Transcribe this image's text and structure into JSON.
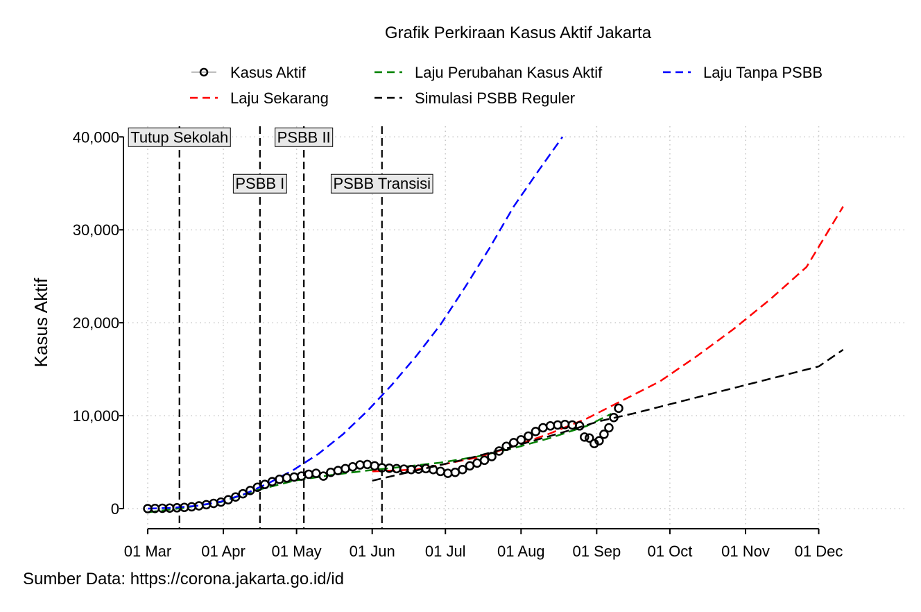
{
  "chart_data": {
    "type": "line",
    "title": "Grafik Perkiraan Kasus Aktif Jakarta",
    "xlabel": "",
    "ylabel": "Kasus Aktif",
    "caption": "Sumber Data: https://corona.jakarta.go.id/id",
    "xlim": [
      0,
      275
    ],
    "ylim": [
      -2000,
      40500
    ],
    "grid": true,
    "legend_position": "top",
    "x_ticks": [
      {
        "label": "01 Mar",
        "day": 0
      },
      {
        "label": "01 Apr",
        "day": 31
      },
      {
        "label": "01 May",
        "day": 61
      },
      {
        "label": "01 Jun",
        "day": 92
      },
      {
        "label": "01 Jul",
        "day": 122
      },
      {
        "label": "01 Aug",
        "day": 153
      },
      {
        "label": "01 Sep",
        "day": 184
      },
      {
        "label": "01 Oct",
        "day": 214
      },
      {
        "label": "01 Nov",
        "day": 245
      },
      {
        "label": "01 Dec",
        "day": 275
      }
    ],
    "y_ticks": [
      {
        "label": "0",
        "value": 0
      },
      {
        "label": "10,000",
        "value": 10000
      },
      {
        "label": "20,000",
        "value": 20000
      },
      {
        "label": "30,000",
        "value": 30000
      },
      {
        "label": "40,000",
        "value": 40000
      }
    ],
    "events": [
      {
        "label": "Tutup Sekolah",
        "day": 13,
        "level": 40000
      },
      {
        "label": "PSBB I",
        "day": 46,
        "level": 35000
      },
      {
        "label": "PSBB II",
        "day": 64,
        "level": 40000
      },
      {
        "label": "PSBB Transisi",
        "day": 96,
        "level": 35000
      }
    ],
    "series": [
      {
        "name": "Kasus Aktif",
        "style": "points",
        "color": "#000000",
        "x": [
          0,
          3,
          6,
          9,
          12,
          15,
          18,
          21,
          24,
          27,
          30,
          33,
          36,
          39,
          42,
          45,
          48,
          51,
          54,
          57,
          60,
          63,
          66,
          69,
          72,
          75,
          78,
          81,
          84,
          87,
          90,
          93,
          96,
          99,
          102,
          105,
          108,
          111,
          114,
          117,
          120,
          123,
          126,
          129,
          132,
          135,
          138,
          141,
          144,
          147,
          150,
          153,
          156,
          159,
          162,
          165,
          168,
          171,
          174,
          177,
          179,
          181,
          183,
          185,
          187,
          189,
          191,
          193
        ],
        "y": [
          0,
          20,
          40,
          60,
          90,
          130,
          200,
          300,
          420,
          560,
          700,
          950,
          1250,
          1600,
          1950,
          2300,
          2600,
          2900,
          3150,
          3300,
          3400,
          3500,
          3700,
          3800,
          3500,
          3900,
          4100,
          4300,
          4500,
          4700,
          4750,
          4600,
          4400,
          4350,
          4300,
          4250,
          4200,
          4250,
          4300,
          4200,
          4000,
          3800,
          3900,
          4200,
          4600,
          4900,
          5200,
          5600,
          6200,
          6700,
          7100,
          7400,
          7800,
          8300,
          8700,
          8900,
          9000,
          9050,
          9000,
          8900,
          7700,
          7600,
          7000,
          7300,
          8000,
          8700,
          9800,
          10800
        ]
      },
      {
        "name": "Laju Perubahan Kasus Aktif",
        "style": "dashed",
        "color": "#008000",
        "x": [
          0,
          15,
          30,
          45,
          60,
          75,
          90,
          105,
          120,
          135,
          150,
          165,
          180,
          190
        ],
        "y": [
          -400,
          100,
          700,
          2000,
          3000,
          3600,
          4100,
          4500,
          4950,
          5600,
          6500,
          7600,
          8900,
          10200
        ]
      },
      {
        "name": "Laju Tanpa PSBB",
        "style": "dashed",
        "color": "#0000ff",
        "x": [
          0,
          10,
          20,
          30,
          40,
          50,
          60,
          70,
          80,
          90,
          100,
          110,
          120,
          130,
          140,
          150,
          160,
          170
        ],
        "y": [
          0,
          80,
          300,
          750,
          1600,
          2800,
          4200,
          5900,
          8000,
          10500,
          13300,
          16400,
          19800,
          23800,
          28000,
          32500,
          36300,
          40000
        ]
      },
      {
        "name": "Laju Sekarang",
        "style": "dashed",
        "color": "#ff0000",
        "x": [
          92,
          110,
          120,
          135,
          150,
          165,
          180,
          195,
          210,
          225,
          240,
          255,
          270,
          285
        ],
        "y": [
          4000,
          4200,
          4700,
          5500,
          6700,
          8100,
          9700,
          11700,
          13700,
          16400,
          19300,
          22500,
          26000,
          32500
        ]
      },
      {
        "name": "Simulasi PSBB Reguler",
        "style": "dashed",
        "color": "#000000",
        "x": [
          92,
          110,
          130,
          150,
          170,
          185,
          200,
          215,
          230,
          245,
          260,
          275,
          285
        ],
        "y": [
          3000,
          4100,
          5300,
          6700,
          8200,
          9400,
          10300,
          11300,
          12300,
          13300,
          14300,
          15300,
          17100
        ]
      }
    ]
  }
}
